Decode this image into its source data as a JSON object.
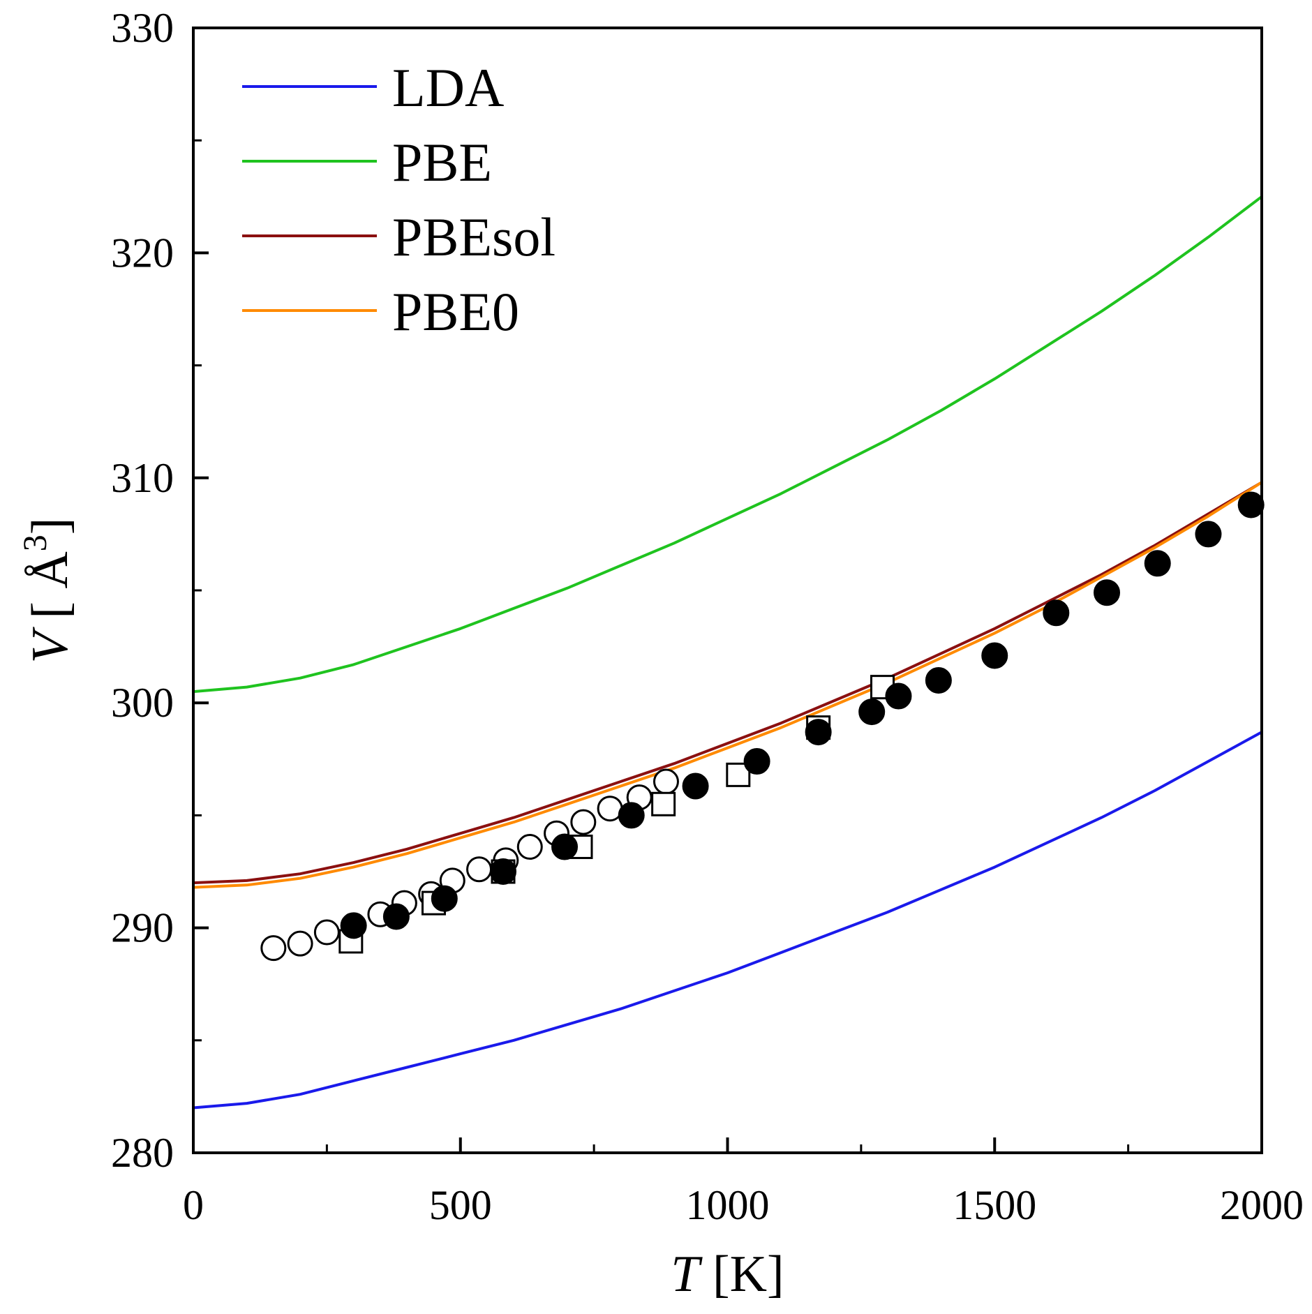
{
  "chart_data": {
    "type": "line",
    "xlabel": {
      "italic": "T",
      "rest": " [K]"
    },
    "ylabel": {
      "italic": "V",
      "rest": " [ Å",
      "sup": "3",
      "close": "]"
    },
    "xlim": [
      0,
      2000
    ],
    "ylim": [
      280,
      330
    ],
    "x_ticks": [
      0,
      500,
      1000,
      1500,
      2000
    ],
    "x_tick_labels": [
      "0",
      "500",
      "1000",
      "1500",
      "2000"
    ],
    "x_minor_ticks": [
      250,
      750,
      1250,
      1750
    ],
    "y_ticks": [
      280,
      290,
      300,
      310,
      320,
      330
    ],
    "y_tick_labels": [
      "280",
      "290",
      "300",
      "310",
      "320",
      "330"
    ],
    "y_minor_ticks": [
      285,
      295,
      305,
      315,
      325
    ],
    "grid": false,
    "legend_position": "top-left",
    "series": [
      {
        "name": "LDA",
        "color": "#1a1aeb",
        "x": [
          0,
          100,
          200,
          300,
          400,
          500,
          600,
          700,
          800,
          900,
          1000,
          1100,
          1200,
          1300,
          1400,
          1500,
          1600,
          1700,
          1800,
          1900,
          2000
        ],
        "values": [
          282.0,
          282.2,
          282.6,
          283.2,
          283.8,
          284.4,
          285.0,
          285.7,
          286.4,
          287.2,
          288.0,
          288.9,
          289.8,
          290.7,
          291.7,
          292.7,
          293.8,
          294.9,
          296.1,
          297.4,
          298.7
        ]
      },
      {
        "name": "PBE",
        "color": "#1fc31f",
        "x": [
          0,
          100,
          200,
          300,
          400,
          500,
          600,
          700,
          800,
          900,
          1000,
          1100,
          1200,
          1300,
          1400,
          1500,
          1600,
          1700,
          1800,
          1900,
          2000
        ],
        "values": [
          300.5,
          300.7,
          301.1,
          301.7,
          302.5,
          303.3,
          304.2,
          305.1,
          306.1,
          307.1,
          308.2,
          309.3,
          310.5,
          311.7,
          313.0,
          314.4,
          315.9,
          317.4,
          319.0,
          320.7,
          322.5
        ]
      },
      {
        "name": "PBEsol",
        "color": "#8b1010",
        "x": [
          0,
          100,
          200,
          300,
          400,
          500,
          600,
          700,
          800,
          900,
          1000,
          1100,
          1200,
          1300,
          1400,
          1500,
          1600,
          1700,
          1800,
          1900,
          2000
        ],
        "values": [
          292.0,
          292.1,
          292.4,
          292.9,
          293.5,
          294.2,
          294.9,
          295.7,
          296.5,
          297.3,
          298.2,
          299.1,
          300.1,
          301.1,
          302.2,
          303.3,
          304.5,
          305.7,
          307.0,
          308.4,
          309.8
        ]
      },
      {
        "name": "PBE0",
        "color": "#ff8a00",
        "x": [
          0,
          100,
          200,
          300,
          400,
          500,
          600,
          700,
          800,
          900,
          1000,
          1100,
          1200,
          1300,
          1400,
          1500,
          1600,
          1700,
          1800,
          1900,
          2000
        ],
        "values": [
          291.8,
          291.9,
          292.2,
          292.7,
          293.3,
          294.0,
          294.7,
          295.5,
          296.3,
          297.1,
          298.0,
          298.9,
          299.9,
          300.9,
          302.0,
          303.1,
          304.3,
          305.6,
          306.9,
          308.3,
          309.8
        ]
      }
    ],
    "markers": [
      {
        "name": "open-circles",
        "style": "open-circle",
        "x": [
          150,
          200,
          250,
          350,
          395,
          445,
          485,
          535,
          585,
          630,
          680,
          730,
          780,
          835,
          885
        ],
        "values": [
          289.1,
          289.3,
          289.8,
          290.6,
          291.1,
          291.5,
          292.1,
          292.6,
          293.0,
          293.6,
          294.2,
          294.7,
          295.3,
          295.8,
          296.5
        ]
      },
      {
        "name": "open-squares",
        "style": "open-square",
        "x": [
          295,
          450,
          580,
          725,
          880,
          1020,
          1170,
          1290
        ],
        "values": [
          289.4,
          291.1,
          292.5,
          293.6,
          295.5,
          296.8,
          298.9,
          300.7
        ]
      },
      {
        "name": "filled-circles",
        "style": "filled-circle",
        "x": [
          300,
          380,
          470,
          580,
          695,
          820,
          940,
          1055,
          1170,
          1270,
          1320,
          1395,
          1500,
          1615,
          1710,
          1805,
          1900,
          1980
        ],
        "values": [
          290.1,
          290.5,
          291.3,
          292.5,
          293.6,
          295.0,
          296.3,
          297.4,
          298.7,
          299.6,
          300.3,
          301.0,
          302.1,
          304.0,
          304.9,
          306.2,
          307.5,
          308.8
        ]
      }
    ]
  }
}
